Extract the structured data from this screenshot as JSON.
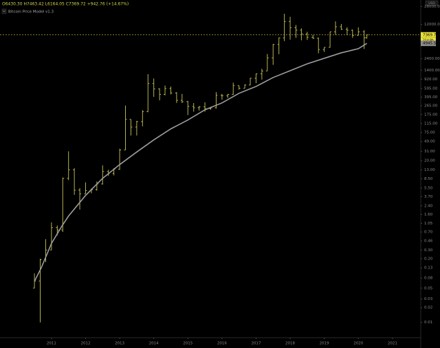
{
  "chart_data": {
    "type": "ohlc",
    "header": "O6430.30 H7463.42 L6164.05 C7369.72 +942.76 (+14.67%)",
    "currency": "USD",
    "countdown": "21d 8h",
    "log_scale": true,
    "xlim": [
      2009.49,
      2021.83
    ],
    "xticks": [
      2011,
      2012,
      2013,
      2014,
      2015,
      2016,
      2017,
      2018,
      2019,
      2020,
      2021
    ],
    "ylim": [
      0.0052,
      37900
    ],
    "yticks": [
      {
        "value": 28000,
        "label": "28000.00"
      },
      {
        "value": 12000,
        "label": "12000.00"
      },
      {
        "value": 2400,
        "label": "2400.00"
      },
      {
        "value": 1400,
        "label": "1400.00"
      },
      {
        "value": 920,
        "label": "920.00"
      },
      {
        "value": 595,
        "label": "595.00"
      },
      {
        "value": 395,
        "label": "395.00"
      },
      {
        "value": 265,
        "label": "265.00"
      },
      {
        "value": 175,
        "label": "175.00"
      },
      {
        "value": 115,
        "label": "115.00"
      },
      {
        "value": 75,
        "label": "75.00"
      },
      {
        "value": 49,
        "label": "49.00"
      },
      {
        "value": 31,
        "label": "31.00"
      },
      {
        "value": 20,
        "label": "20.00"
      },
      {
        "value": 13,
        "label": "13.00"
      },
      {
        "value": 8.5,
        "label": "8.50"
      },
      {
        "value": 5.5,
        "label": "5.50"
      },
      {
        "value": 3.7,
        "label": "3.70"
      },
      {
        "value": 2.4,
        "label": "2.40"
      },
      {
        "value": 1.6,
        "label": "1.60"
      },
      {
        "value": 1.05,
        "label": "1.05"
      },
      {
        "value": 0.7,
        "label": "0.70"
      },
      {
        "value": 0.46,
        "label": "0.46"
      },
      {
        "value": 0.3,
        "label": "0.30"
      },
      {
        "value": 0.2,
        "label": "0.20"
      },
      {
        "value": 0.13,
        "label": "0.13"
      },
      {
        "value": 0.08,
        "label": "0.08"
      },
      {
        "value": 0.05,
        "label": "0.05"
      },
      {
        "value": 0.03,
        "label": "0.03"
      },
      {
        "value": 0.02,
        "label": "0.02"
      },
      {
        "value": 0.01,
        "label": "0.01"
      }
    ],
    "ohlc": {
      "color": "#b9b450",
      "x": [
        2010.5,
        2010.67,
        2010.83,
        2011.0,
        2011.17,
        2011.33,
        2011.5,
        2011.67,
        2011.83,
        2012.0,
        2012.17,
        2012.33,
        2012.5,
        2012.67,
        2012.83,
        2013.0,
        2013.17,
        2013.33,
        2013.5,
        2013.67,
        2013.83,
        2014.0,
        2014.17,
        2014.33,
        2014.5,
        2014.67,
        2014.83,
        2015.0,
        2015.17,
        2015.33,
        2015.5,
        2015.67,
        2015.83,
        2016.0,
        2016.17,
        2016.33,
        2016.5,
        2016.67,
        2016.83,
        2017.0,
        2017.17,
        2017.33,
        2017.5,
        2017.67,
        2017.83,
        2018.0,
        2018.17,
        2018.33,
        2018.5,
        2018.67,
        2018.83,
        2019.0,
        2019.17,
        2019.33,
        2019.5,
        2019.67,
        2019.83,
        2020.0,
        2020.17,
        2020.25
      ],
      "open": [
        0.05,
        0.07,
        0.19,
        0.3,
        0.86,
        0.77,
        8.7,
        13,
        5,
        4.2,
        4.9,
        5.1,
        6.7,
        12,
        11,
        13.4,
        33,
        139,
        97,
        125,
        200,
        750,
        580,
        450,
        590,
        480,
        340,
        320,
        255,
        240,
        250,
        230,
        240,
        430,
        420,
        450,
        680,
        600,
        700,
        960,
        1180,
        1350,
        2500,
        4700,
        6400,
        13800,
        10300,
        9200,
        7700,
        6600,
        6300,
        3700,
        4100,
        8500,
        10800,
        9600,
        9150,
        7200,
        8500,
        6430.3
      ],
      "high": [
        0.1,
        0.2,
        0.5,
        1.1,
        0.95,
        9,
        31,
        14,
        5.5,
        7.2,
        5.4,
        7.5,
        16,
        13,
        14,
        35,
        266,
        140,
        130,
        215,
        1163,
        950,
        600,
        680,
        650,
        500,
        460,
        330,
        300,
        260,
        310,
        250,
        500,
        460,
        460,
        780,
        680,
        720,
        980,
        1200,
        1500,
        3000,
        4800,
        6500,
        19800,
        17200,
        11700,
        9990,
        8500,
        7400,
        6500,
        4100,
        8500,
        13900,
        12300,
        10500,
        9500,
        10500,
        9200,
        7463.42
      ],
      "low": [
        0.05,
        0.01,
        0.17,
        0.3,
        0.6,
        0.7,
        8,
        4,
        2,
        4.2,
        4.3,
        4.9,
        6.5,
        9.8,
        10,
        13,
        33,
        65,
        65,
        100,
        195,
        400,
        340,
        430,
        450,
        300,
        300,
        170,
        200,
        210,
        200,
        220,
        230,
        350,
        380,
        440,
        560,
        600,
        690,
        760,
        900,
        1350,
        1800,
        2970,
        5500,
        5900,
        6400,
        5700,
        5800,
        6100,
        3100,
        3300,
        4050,
        7400,
        9300,
        7300,
        6400,
        7200,
        3800,
        6164.05
      ],
      "close": [
        0.07,
        0.19,
        0.3,
        0.86,
        0.77,
        8.7,
        13,
        5,
        4.2,
        4.9,
        5.1,
        6.7,
        12,
        11,
        13.4,
        33,
        139,
        97,
        125,
        200,
        750,
        580,
        450,
        590,
        480,
        340,
        320,
        255,
        240,
        250,
        230,
        240,
        430,
        420,
        450,
        680,
        600,
        700,
        960,
        1180,
        1350,
        2500,
        4700,
        6400,
        13800,
        10300,
        9200,
        7700,
        6600,
        6300,
        3700,
        4100,
        8500,
        10800,
        9600,
        9150,
        7200,
        8500,
        6430.3,
        7369.72
      ]
    },
    "model": {
      "name": "Bitcoin Price Model v1.3",
      "color": "#9e9e9e",
      "x": [
        2010.5,
        2010.7,
        2011.0,
        2011.3,
        2011.5,
        2012.0,
        2012.5,
        2013.0,
        2013.5,
        2014.0,
        2014.5,
        2015.0,
        2015.5,
        2016.0,
        2016.5,
        2017.0,
        2017.5,
        2018.0,
        2018.5,
        2019.0,
        2019.5,
        2020.0,
        2020.25
      ],
      "values": [
        0.069,
        0.13,
        0.41,
        0.91,
        1.48,
        3.9,
        8.7,
        16.6,
        30,
        53,
        89,
        135,
        218,
        301,
        473,
        653,
        993,
        1370,
        1890,
        2450,
        3170,
        3850,
        4945.58
      ]
    }
  }
}
